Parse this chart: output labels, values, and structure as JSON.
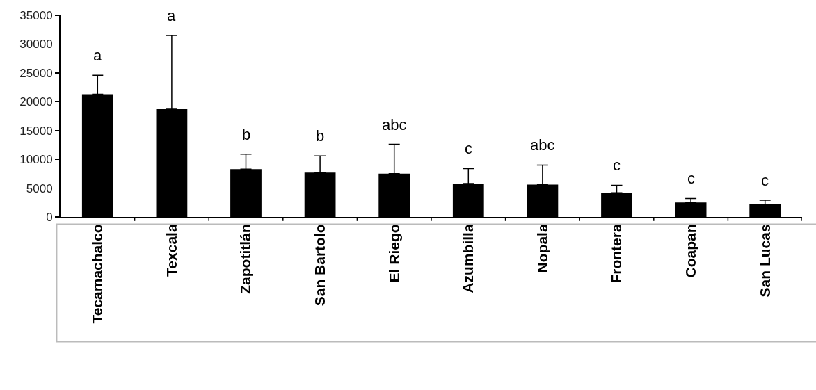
{
  "chart_data": {
    "type": "bar",
    "categories": [
      "Tecamachalco",
      "Texcala",
      "Zapotitlán",
      "San Bartolo",
      "El Riego",
      "Azumbilla",
      "Nopala",
      "Frontera",
      "Coapan",
      "San Lucas"
    ],
    "values": [
      21300,
      18700,
      8300,
      7700,
      7500,
      5800,
      5600,
      4200,
      2500,
      2200
    ],
    "errors": [
      [
        21300,
        24600
      ],
      [
        18700,
        31500
      ],
      [
        8300,
        10900
      ],
      [
        7700,
        10600
      ],
      [
        7500,
        12600
      ],
      [
        5800,
        8400
      ],
      [
        5600,
        9000
      ],
      [
        4200,
        5500
      ],
      [
        2500,
        3200
      ],
      [
        2200,
        2900
      ]
    ],
    "color": "#000000",
    "ylim": [
      0,
      35000
    ],
    "yticks": [
      0,
      5000,
      10000,
      15000,
      20000,
      25000,
      30000,
      35000
    ],
    "grid": false,
    "annotations": [
      "a",
      "a",
      "b",
      "b",
      "abc",
      "c",
      "abc",
      "c",
      "c",
      "c"
    ]
  }
}
